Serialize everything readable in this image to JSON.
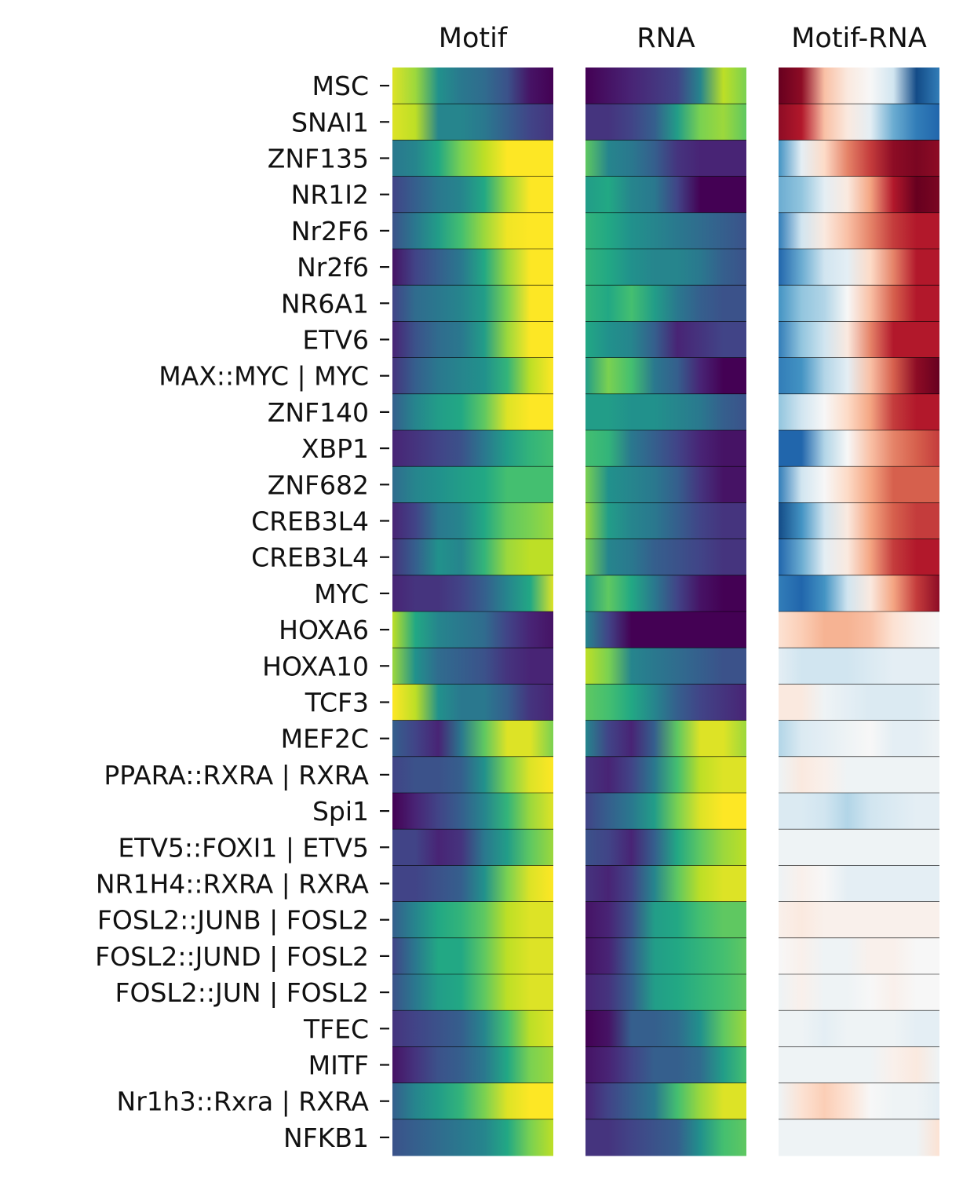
{
  "chart_data": {
    "type": "heatmap",
    "panels": [
      {
        "title": "Motif",
        "colormap": "viridis"
      },
      {
        "title": "RNA",
        "colormap": "viridis"
      },
      {
        "title": "Motif-RNA",
        "colormap": "RdBu_r"
      }
    ],
    "rows": [
      "MSC",
      "SNAI1",
      "ZNF135",
      "NR1I2",
      "Nr2F6",
      "Nr2f6",
      "NR6A1",
      "ETV6",
      "MAX::MYC | MYC",
      "ZNF140",
      "XBP1",
      "ZNF682",
      "CREB3L4",
      "CREB3L4",
      "MYC",
      "HOXA6",
      "HOXA10",
      "TCF3",
      "MEF2C",
      "PPARA::RXRA | RXRA",
      "Spi1",
      "ETV5::FOXI1 | ETV5",
      "NR1H4::RXRA | RXRA",
      "FOSL2::JUNB | FOSL2",
      "FOSL2::JUND | FOSL2",
      "FOSL2::JUN | FOSL2",
      "TFEC",
      "MITF",
      "Nr1h3::Rxra | RXRA",
      "NFKB1"
    ],
    "columns": 8,
    "value_range": {
      "Motif": [
        0,
        1
      ],
      "RNA": [
        0,
        1
      ],
      "Motif-RNA": [
        -1,
        1
      ]
    },
    "matrices": {
      "Motif": [
        [
          0.95,
          0.85,
          0.5,
          0.4,
          0.35,
          0.25,
          0.05,
          0.0
        ],
        [
          0.95,
          0.9,
          0.45,
          0.45,
          0.4,
          0.3,
          0.2,
          0.15
        ],
        [
          0.4,
          0.45,
          0.6,
          0.8,
          0.9,
          1.0,
          1.0,
          1.0
        ],
        [
          0.2,
          0.3,
          0.4,
          0.45,
          0.6,
          0.85,
          1.0,
          1.0
        ],
        [
          0.25,
          0.4,
          0.55,
          0.7,
          0.85,
          0.98,
          1.0,
          1.0
        ],
        [
          0.05,
          0.2,
          0.3,
          0.4,
          0.6,
          0.85,
          1.0,
          1.0
        ],
        [
          0.2,
          0.35,
          0.4,
          0.45,
          0.55,
          0.8,
          1.0,
          1.0
        ],
        [
          0.1,
          0.25,
          0.35,
          0.4,
          0.55,
          0.85,
          1.0,
          1.0
        ],
        [
          0.15,
          0.3,
          0.4,
          0.45,
          0.5,
          0.65,
          0.9,
          1.0
        ],
        [
          0.3,
          0.45,
          0.55,
          0.6,
          0.75,
          0.95,
          1.0,
          1.0
        ],
        [
          0.1,
          0.15,
          0.2,
          0.25,
          0.4,
          0.55,
          0.65,
          0.7
        ],
        [
          0.35,
          0.45,
          0.5,
          0.55,
          0.6,
          0.7,
          0.7,
          0.7
        ],
        [
          0.1,
          0.2,
          0.4,
          0.45,
          0.6,
          0.75,
          0.8,
          0.85
        ],
        [
          0.15,
          0.3,
          0.5,
          0.45,
          0.65,
          0.85,
          0.9,
          0.9
        ],
        [
          0.1,
          0.15,
          0.15,
          0.2,
          0.3,
          0.45,
          0.6,
          0.95
        ],
        [
          0.9,
          0.6,
          0.45,
          0.4,
          0.35,
          0.2,
          0.1,
          0.05
        ],
        [
          0.85,
          0.5,
          0.35,
          0.3,
          0.25,
          0.15,
          0.1,
          0.1
        ],
        [
          1.0,
          0.9,
          0.5,
          0.4,
          0.4,
          0.3,
          0.15,
          0.1
        ],
        [
          0.3,
          0.2,
          0.1,
          0.4,
          0.75,
          0.95,
          0.95,
          0.8
        ],
        [
          0.2,
          0.25,
          0.25,
          0.3,
          0.5,
          0.8,
          0.95,
          1.0
        ],
        [
          0.0,
          0.1,
          0.2,
          0.3,
          0.45,
          0.65,
          0.85,
          0.95
        ],
        [
          0.2,
          0.2,
          0.1,
          0.15,
          0.4,
          0.55,
          0.75,
          0.85
        ],
        [
          0.2,
          0.2,
          0.25,
          0.3,
          0.5,
          0.8,
          0.95,
          1.0
        ],
        [
          0.3,
          0.45,
          0.6,
          0.65,
          0.75,
          0.9,
          0.95,
          0.95
        ],
        [
          0.2,
          0.4,
          0.6,
          0.6,
          0.75,
          0.9,
          0.95,
          0.95
        ],
        [
          0.25,
          0.4,
          0.55,
          0.6,
          0.75,
          0.9,
          0.95,
          0.95
        ],
        [
          0.15,
          0.2,
          0.25,
          0.3,
          0.45,
          0.7,
          0.9,
          0.95
        ],
        [
          0.05,
          0.15,
          0.25,
          0.3,
          0.4,
          0.6,
          0.8,
          0.85
        ],
        [
          0.3,
          0.45,
          0.55,
          0.65,
          0.8,
          0.95,
          1.0,
          1.0
        ],
        [
          0.25,
          0.3,
          0.35,
          0.4,
          0.45,
          0.6,
          0.8,
          0.9
        ]
      ],
      "RNA": [
        [
          0.0,
          0.05,
          0.1,
          0.15,
          0.2,
          0.45,
          0.9,
          0.8
        ],
        [
          0.15,
          0.15,
          0.2,
          0.3,
          0.55,
          0.8,
          0.85,
          0.75
        ],
        [
          0.75,
          0.45,
          0.4,
          0.3,
          0.15,
          0.1,
          0.1,
          0.1
        ],
        [
          0.55,
          0.6,
          0.45,
          0.4,
          0.2,
          0.0,
          0.0,
          0.0
        ],
        [
          0.65,
          0.6,
          0.5,
          0.45,
          0.4,
          0.35,
          0.3,
          0.25
        ],
        [
          0.65,
          0.6,
          0.5,
          0.45,
          0.45,
          0.4,
          0.3,
          0.25
        ],
        [
          0.65,
          0.6,
          0.7,
          0.55,
          0.4,
          0.3,
          0.25,
          0.25
        ],
        [
          0.6,
          0.5,
          0.45,
          0.3,
          0.1,
          0.15,
          0.2,
          0.2
        ],
        [
          0.55,
          0.8,
          0.7,
          0.4,
          0.3,
          0.1,
          0.0,
          0.0
        ],
        [
          0.55,
          0.55,
          0.5,
          0.5,
          0.45,
          0.4,
          0.3,
          0.25
        ],
        [
          0.7,
          0.65,
          0.4,
          0.3,
          0.2,
          0.1,
          0.05,
          0.05
        ],
        [
          0.8,
          0.5,
          0.45,
          0.4,
          0.3,
          0.15,
          0.05,
          0.05
        ],
        [
          0.85,
          0.55,
          0.45,
          0.4,
          0.3,
          0.2,
          0.15,
          0.15
        ],
        [
          0.8,
          0.45,
          0.4,
          0.3,
          0.25,
          0.2,
          0.15,
          0.15
        ],
        [
          0.55,
          0.75,
          0.6,
          0.4,
          0.2,
          0.05,
          0.0,
          0.0
        ],
        [
          0.45,
          0.2,
          0.0,
          0.0,
          0.0,
          0.0,
          0.0,
          0.0
        ],
        [
          0.9,
          0.8,
          0.45,
          0.4,
          0.35,
          0.3,
          0.25,
          0.25
        ],
        [
          0.75,
          0.7,
          0.6,
          0.45,
          0.3,
          0.2,
          0.15,
          0.1
        ],
        [
          0.45,
          0.2,
          0.1,
          0.3,
          0.75,
          0.95,
          0.95,
          0.85
        ],
        [
          0.15,
          0.1,
          0.2,
          0.4,
          0.7,
          0.9,
          0.95,
          0.95
        ],
        [
          0.2,
          0.3,
          0.4,
          0.55,
          0.8,
          0.95,
          1.0,
          1.0
        ],
        [
          0.25,
          0.2,
          0.1,
          0.3,
          0.6,
          0.75,
          0.85,
          0.9
        ],
        [
          0.15,
          0.1,
          0.2,
          0.45,
          0.75,
          0.9,
          0.95,
          0.95
        ],
        [
          0.05,
          0.1,
          0.25,
          0.55,
          0.6,
          0.7,
          0.75,
          0.75
        ],
        [
          0.05,
          0.1,
          0.3,
          0.55,
          0.6,
          0.65,
          0.7,
          0.75
        ],
        [
          0.1,
          0.15,
          0.3,
          0.55,
          0.6,
          0.65,
          0.7,
          0.75
        ],
        [
          0.0,
          0.05,
          0.3,
          0.3,
          0.35,
          0.5,
          0.75,
          0.85
        ],
        [
          0.05,
          0.1,
          0.2,
          0.3,
          0.3,
          0.35,
          0.55,
          0.7
        ],
        [
          0.1,
          0.2,
          0.3,
          0.4,
          0.7,
          0.85,
          0.95,
          0.95
        ],
        [
          0.15,
          0.15,
          0.2,
          0.25,
          0.3,
          0.5,
          0.7,
          0.75
        ]
      ],
      "Motif-RNA": [
        [
          1.0,
          0.9,
          0.3,
          0.1,
          0.0,
          -0.2,
          -0.9,
          -0.7
        ],
        [
          0.9,
          0.8,
          0.3,
          0.1,
          -0.1,
          -0.5,
          -0.7,
          -0.8
        ],
        [
          -0.6,
          -0.1,
          0.2,
          0.5,
          0.7,
          0.9,
          0.95,
          0.9
        ],
        [
          -0.5,
          -0.4,
          -0.1,
          0.1,
          0.4,
          0.8,
          1.0,
          0.95
        ],
        [
          -0.7,
          -0.2,
          0.1,
          0.3,
          0.5,
          0.7,
          0.8,
          0.8
        ],
        [
          -0.8,
          -0.5,
          -0.2,
          -0.1,
          0.2,
          0.5,
          0.8,
          0.8
        ],
        [
          -0.6,
          -0.4,
          -0.3,
          0.0,
          0.3,
          0.6,
          0.8,
          0.8
        ],
        [
          -0.7,
          -0.4,
          -0.2,
          0.1,
          0.5,
          0.8,
          0.8,
          0.8
        ],
        [
          -0.7,
          -0.6,
          -0.3,
          -0.1,
          0.3,
          0.6,
          0.9,
          1.0
        ],
        [
          -0.4,
          -0.2,
          0.0,
          0.2,
          0.4,
          0.7,
          0.8,
          0.8
        ],
        [
          -0.8,
          -0.8,
          -0.3,
          0.0,
          0.3,
          0.5,
          0.6,
          0.7
        ],
        [
          -0.7,
          -0.2,
          0.0,
          0.2,
          0.4,
          0.6,
          0.6,
          0.6
        ],
        [
          -0.9,
          -0.6,
          -0.2,
          0.1,
          0.4,
          0.6,
          0.7,
          0.7
        ],
        [
          -0.8,
          -0.5,
          -0.1,
          0.1,
          0.4,
          0.7,
          0.8,
          0.8
        ],
        [
          -0.7,
          -0.8,
          -0.6,
          -0.2,
          0.1,
          0.4,
          0.7,
          0.9
        ],
        [
          0.15,
          0.25,
          0.35,
          0.35,
          0.3,
          0.15,
          0.05,
          0.0
        ],
        [
          -0.1,
          -0.2,
          -0.2,
          -0.2,
          -0.15,
          -0.1,
          -0.1,
          -0.1
        ],
        [
          0.1,
          0.1,
          -0.05,
          -0.1,
          -0.15,
          -0.15,
          -0.15,
          -0.1
        ],
        [
          -0.3,
          -0.15,
          -0.1,
          -0.05,
          0.0,
          -0.1,
          -0.1,
          -0.05
        ],
        [
          -0.05,
          0.1,
          0.05,
          -0.05,
          -0.05,
          -0.05,
          -0.05,
          -0.05
        ],
        [
          -0.15,
          -0.15,
          -0.2,
          -0.3,
          -0.2,
          -0.15,
          -0.1,
          -0.1
        ],
        [
          -0.05,
          -0.05,
          -0.05,
          -0.05,
          -0.05,
          -0.05,
          -0.05,
          -0.05
        ],
        [
          -0.05,
          0.05,
          0.0,
          -0.1,
          -0.1,
          -0.1,
          -0.1,
          -0.1
        ],
        [
          0.05,
          0.1,
          0.05,
          0.05,
          0.05,
          0.05,
          0.05,
          0.05
        ],
        [
          0.0,
          0.05,
          -0.05,
          -0.05,
          0.05,
          0.05,
          0.0,
          0.0
        ],
        [
          -0.05,
          0.05,
          -0.05,
          -0.05,
          0.0,
          0.05,
          0.0,
          0.0
        ],
        [
          -0.05,
          -0.05,
          -0.1,
          -0.05,
          -0.05,
          -0.05,
          -0.1,
          -0.1
        ],
        [
          -0.05,
          -0.05,
          -0.05,
          -0.05,
          -0.05,
          0.05,
          0.1,
          -0.05
        ],
        [
          -0.05,
          0.15,
          0.25,
          0.15,
          0.0,
          -0.05,
          -0.05,
          -0.1
        ],
        [
          -0.05,
          -0.05,
          -0.05,
          -0.05,
          -0.05,
          -0.05,
          -0.05,
          0.15
        ]
      ]
    }
  }
}
